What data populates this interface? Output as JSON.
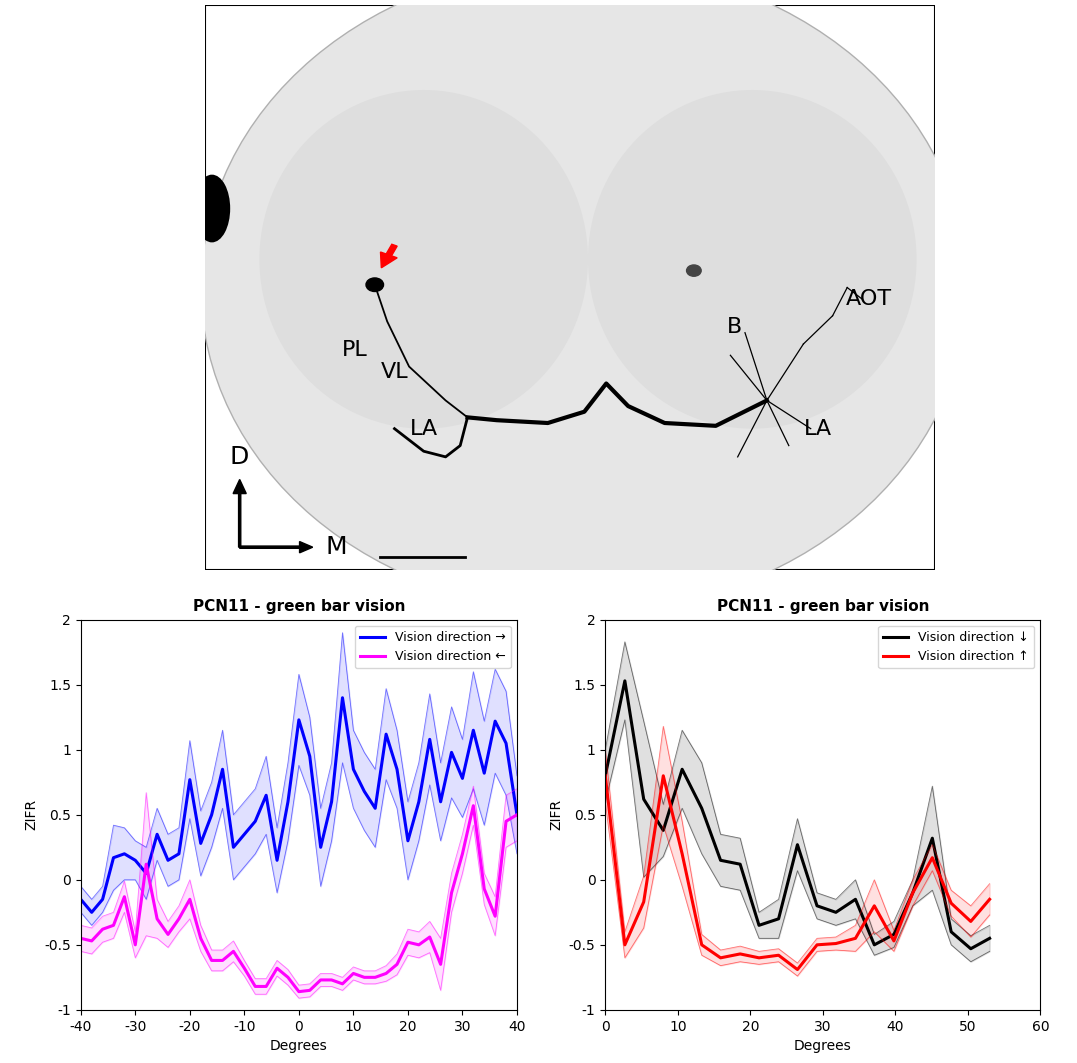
{
  "image": {
    "labels": [
      "PL",
      "VL",
      "LA",
      "B",
      "AOT",
      "LA"
    ],
    "compass": [
      "D",
      "M"
    ]
  },
  "chart_data": [
    {
      "type": "line",
      "title": "PCN11 - green bar vision",
      "x_label": "Degrees",
      "y_label": "ZIFR",
      "x": [
        -40,
        -38,
        -36,
        -34,
        -32,
        -30,
        -28,
        -26,
        -24,
        -22,
        -20,
        -18,
        -16,
        -14,
        -12,
        -10,
        -8,
        -6,
        -4,
        -2,
        0,
        2,
        4,
        6,
        8,
        10,
        12,
        14,
        16,
        18,
        20,
        22,
        24,
        26,
        28,
        30,
        32,
        34,
        36,
        38,
        40
      ],
      "series": [
        {
          "name": "Vision direction →",
          "color": "#0000ff",
          "values": [
            -0.15,
            -0.25,
            -0.15,
            0.17,
            0.2,
            0.15,
            0.05,
            0.35,
            0.15,
            0.2,
            0.77,
            0.28,
            0.5,
            0.85,
            0.25,
            0.35,
            0.45,
            0.65,
            0.15,
            0.6,
            1.23,
            0.95,
            0.25,
            0.6,
            1.4,
            0.85,
            0.68,
            0.55,
            1.12,
            0.85,
            0.3,
            0.6,
            1.08,
            0.6,
            0.98,
            0.78,
            1.15,
            0.82,
            1.22,
            1.05,
            0.5
          ],
          "error": [
            0.1,
            0.1,
            0.1,
            0.25,
            0.2,
            0.15,
            0.2,
            0.2,
            0.2,
            0.2,
            0.3,
            0.25,
            0.25,
            0.3,
            0.25,
            0.25,
            0.25,
            0.3,
            0.25,
            0.3,
            0.35,
            0.3,
            0.3,
            0.3,
            0.5,
            0.3,
            0.3,
            0.3,
            0.35,
            0.3,
            0.3,
            0.3,
            0.35,
            0.3,
            0.35,
            0.3,
            0.45,
            0.4,
            0.4,
            0.4,
            0.3
          ]
        },
        {
          "name": "Vision direction ←",
          "color": "#ff00ff",
          "values": [
            -0.45,
            -0.47,
            -0.38,
            -0.35,
            -0.13,
            -0.5,
            0.12,
            -0.3,
            -0.42,
            -0.3,
            -0.15,
            -0.45,
            -0.62,
            -0.62,
            -0.55,
            -0.68,
            -0.82,
            -0.82,
            -0.68,
            -0.75,
            -0.86,
            -0.85,
            -0.77,
            -0.77,
            -0.8,
            -0.72,
            -0.75,
            -0.75,
            -0.72,
            -0.65,
            -0.48,
            -0.5,
            -0.44,
            -0.65,
            -0.1,
            0.2,
            0.57,
            -0.07,
            -0.28,
            0.45,
            0.5
          ],
          "error": [
            0.1,
            0.1,
            0.1,
            0.1,
            0.12,
            0.1,
            0.55,
            0.15,
            0.1,
            0.1,
            0.15,
            0.1,
            0.08,
            0.08,
            0.08,
            0.06,
            0.06,
            0.06,
            0.06,
            0.06,
            0.05,
            0.05,
            0.05,
            0.05,
            0.05,
            0.05,
            0.05,
            0.05,
            0.06,
            0.08,
            0.1,
            0.1,
            0.12,
            0.2,
            0.15,
            0.15,
            0.15,
            0.12,
            0.15,
            0.2,
            0.2
          ]
        }
      ],
      "xlim": [
        -40,
        40
      ],
      "xticks": [
        -40,
        -30,
        -20,
        -10,
        0,
        10,
        20,
        30,
        40
      ],
      "ylim": [
        -1,
        2
      ],
      "yticks": [
        -1,
        -0.5,
        0,
        0.5,
        1,
        1.5,
        2
      ],
      "legend": "upper right"
    },
    {
      "type": "line",
      "title": "PCN11 - green bar vision",
      "x_label": "Degrees",
      "y_label": "ZIFR",
      "x": [
        0,
        2.7,
        5.3,
        8,
        10.6,
        13.3,
        15.9,
        18.6,
        21.2,
        23.9,
        26.5,
        29.2,
        31.8,
        34.5,
        37.1,
        39.8,
        42.4,
        45.1,
        47.7,
        50.4,
        53
      ],
      "series": [
        {
          "name": "Vision direction ↓",
          "color": "#000000",
          "values": [
            0.8,
            1.53,
            0.62,
            0.38,
            0.85,
            0.55,
            0.15,
            0.12,
            -0.35,
            -0.3,
            0.27,
            -0.2,
            -0.25,
            -0.15,
            -0.5,
            -0.42,
            -0.1,
            0.32,
            -0.4,
            -0.53,
            -0.45
          ],
          "error": [
            0.2,
            0.3,
            0.6,
            0.2,
            0.3,
            0.35,
            0.2,
            0.2,
            0.1,
            0.15,
            0.2,
            0.1,
            0.1,
            0.15,
            0.08,
            0.1,
            0.1,
            0.4,
            0.1,
            0.1,
            0.1
          ]
        },
        {
          "name": "Vision direction ↑",
          "color": "#ff0000",
          "values": [
            0.8,
            -0.5,
            -0.17,
            0.8,
            0.2,
            -0.5,
            -0.6,
            -0.57,
            -0.6,
            -0.58,
            -0.69,
            -0.5,
            -0.49,
            -0.45,
            -0.2,
            -0.47,
            -0.1,
            0.17,
            -0.18,
            -0.32,
            -0.15
          ],
          "error": [
            0.2,
            0.1,
            0.2,
            0.38,
            0.25,
            0.08,
            0.06,
            0.06,
            0.05,
            0.05,
            0.05,
            0.05,
            0.05,
            0.1,
            0.2,
            0.08,
            0.1,
            0.1,
            0.1,
            0.12,
            0.12
          ]
        }
      ],
      "xlim": [
        0,
        60
      ],
      "xticks": [
        0,
        10,
        20,
        30,
        40,
        50,
        60
      ],
      "ylim": [
        -1,
        2
      ],
      "yticks": [
        -1,
        -0.5,
        0,
        0.5,
        1,
        1.5,
        2
      ],
      "legend": "upper right"
    }
  ]
}
